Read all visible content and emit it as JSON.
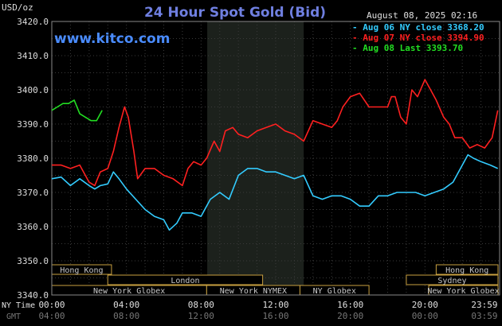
{
  "chart_data": {
    "type": "line",
    "title": "24 Hour Spot Gold (Bid)",
    "website": "www.kitco.com",
    "timestamp": "August 08, 2025 02:16",
    "y_unit_label": "USD/oz",
    "ylim": [
      3340,
      3420
    ],
    "y_ticks": [
      "3420.0",
      "3410.0",
      "3400.0",
      "3390.0",
      "3380.0",
      "3370.0",
      "3360.0",
      "3350.0",
      "3340.0"
    ],
    "x_ticks_ny": [
      "00:00",
      "04:00",
      "08:00",
      "12:00",
      "16:00",
      "20:00",
      "23:59"
    ],
    "x_ticks_gmt": [
      "04:00",
      "08:00",
      "12:00",
      "16:00",
      "20:00",
      "00:00",
      "03:59"
    ],
    "x_row_labels": {
      "ny": "NY Time",
      "gmt": "GMT"
    },
    "grid": true,
    "legend_position": "top-right",
    "highlight_window_hours": [
      8.33,
      13.5
    ],
    "series": [
      {
        "name": "Aug 06 NY close 3368.20",
        "color": "#33ccff",
        "x": [
          0,
          0.5,
          1,
          1.5,
          2,
          2.3,
          2.6,
          3,
          3.3,
          3.6,
          4,
          4.5,
          5,
          5.5,
          6,
          6.3,
          6.7,
          7,
          7.5,
          8,
          8.5,
          9,
          9.5,
          10,
          10.5,
          11,
          11.5,
          12,
          12.5,
          13,
          13.5,
          14,
          14.5,
          15,
          15.5,
          16,
          16.5,
          17,
          17.5,
          18,
          18.5,
          19,
          19.5,
          20,
          20.5,
          21,
          21.5,
          22,
          22.3,
          22.6,
          23,
          23.5,
          23.9
        ],
        "values": [
          3374,
          3374.5,
          3372,
          3374,
          3372,
          3371,
          3372,
          3372.5,
          3376,
          3374,
          3371,
          3368,
          3365,
          3363,
          3362,
          3359,
          3361,
          3364,
          3364,
          3363,
          3368,
          3370,
          3368,
          3375,
          3377,
          3377,
          3376,
          3376,
          3375,
          3374,
          3375,
          3369,
          3368,
          3369,
          3369,
          3368,
          3366,
          3366,
          3369,
          3369,
          3370,
          3370,
          3370,
          3369,
          3370,
          3371,
          3373,
          3378,
          3381,
          3380,
          3379,
          3378,
          3377
        ]
      },
      {
        "name": "Aug 07 NY close 3394.90",
        "color": "#ff2020",
        "x": [
          0,
          0.5,
          1,
          1.5,
          2,
          2.3,
          2.6,
          3,
          3.3,
          3.6,
          3.9,
          4.1,
          4.4,
          4.6,
          5,
          5.5,
          6,
          6.5,
          7,
          7.3,
          7.6,
          8,
          8.3,
          8.7,
          9,
          9.3,
          9.7,
          10,
          10.5,
          11,
          11.5,
          12,
          12.5,
          13,
          13.5,
          14,
          14.5,
          15,
          15.3,
          15.6,
          16,
          16.5,
          17,
          17.5,
          18,
          18.2,
          18.4,
          18.7,
          19,
          19.3,
          19.6,
          20,
          20.3,
          20.6,
          21,
          21.3,
          21.6,
          22,
          22.4,
          22.8,
          23.2,
          23.6,
          23.9
        ],
        "values": [
          3378,
          3378,
          3377,
          3378,
          3373,
          3372,
          3376,
          3377,
          3382,
          3389,
          3395,
          3392,
          3382,
          3374,
          3377,
          3377,
          3375,
          3374,
          3372,
          3377,
          3379,
          3378,
          3380,
          3385,
          3382,
          3388,
          3389,
          3387,
          3386,
          3388,
          3389,
          3390,
          3388,
          3387,
          3385,
          3391,
          3390,
          3389,
          3391,
          3395,
          3398,
          3399,
          3395,
          3395,
          3395,
          3398,
          3398,
          3392,
          3390,
          3400,
          3398,
          3403,
          3400,
          3397,
          3392,
          3390,
          3386,
          3386,
          3383,
          3384,
          3383,
          3386,
          3394
        ]
      },
      {
        "name": "Aug 08 Last 3393.70",
        "color": "#22dd22",
        "x": [
          0,
          0.3,
          0.6,
          0.9,
          1.2,
          1.5,
          1.8,
          2.1,
          2.4,
          2.7
        ],
        "values": [
          3394,
          3395,
          3396,
          3396,
          3397,
          3393,
          3392,
          3391,
          3391,
          3394
        ]
      }
    ],
    "market_sessions": [
      {
        "label": "Hong Kong",
        "rows": [
          0
        ],
        "segments": [
          [
            -1,
            3.2
          ],
          [
            20.6,
            24.5
          ]
        ]
      },
      {
        "label": "London",
        "rows": [
          1
        ],
        "segments": [
          [
            3.0,
            11.3
          ]
        ]
      },
      {
        "label": "New York Globex",
        "rows": [
          2
        ],
        "segments": [
          [
            -1,
            8.3
          ],
          [
            20.2,
            24.5
          ]
        ]
      },
      {
        "label": "New York NYMEX",
        "rows": [
          2
        ],
        "segments": [
          [
            8.3,
            13.3
          ]
        ]
      },
      {
        "label": "NY Globex",
        "rows": [
          2
        ],
        "segments": [
          [
            13.3,
            17.0
          ]
        ]
      },
      {
        "label": "Sydney",
        "rows": [
          1
        ],
        "segments": [
          [
            19.0,
            24.5
          ]
        ]
      }
    ]
  }
}
